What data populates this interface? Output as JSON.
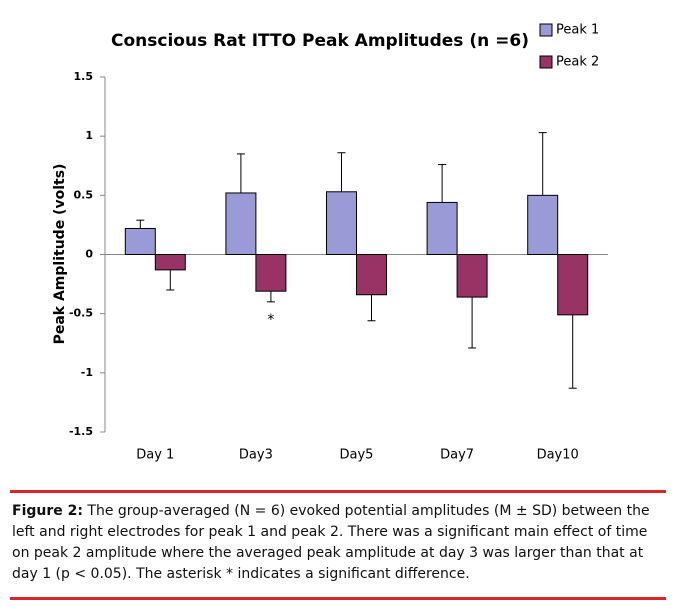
{
  "chart_data": {
    "type": "bar",
    "title": "Conscious Rat ITTO Peak Amplitudes (n =6)",
    "y_label": "Peak Amplitude (volts)",
    "categories": [
      "Day 1",
      "Day3",
      "Day5",
      "Day7",
      "Day10"
    ],
    "series": [
      {
        "name": "Peak 1",
        "color": "#9a9ad6",
        "values": [
          0.22,
          0.52,
          0.53,
          0.44,
          0.5
        ],
        "errors": [
          0.07,
          0.33,
          0.33,
          0.32,
          0.53
        ]
      },
      {
        "name": "Peak 2",
        "color": "#993366",
        "values": [
          -0.13,
          -0.31,
          -0.34,
          -0.36,
          -0.51
        ],
        "errors": [
          0.17,
          0.09,
          0.22,
          0.43,
          0.62
        ]
      }
    ],
    "ylim": [
      -1.5,
      1.5
    ],
    "yticks": [
      1.5,
      1,
      0.5,
      0,
      -0.5,
      -1,
      -1.5
    ],
    "annotations": [
      {
        "text": "*"
      }
    ],
    "legend": "top-right"
  },
  "caption": {
    "label": "Figure 2:",
    "text": "The group-averaged (N = 6) evoked potential amplitudes (M ± SD) between the left and right electrodes for peak 1 and peak 2. There was a significant main effect of time on peak 2 amplitude where the averaged peak amplitude at day 3 was larger than that at day 1 (p < 0.05). The asterisk * indicates a significant difference."
  }
}
